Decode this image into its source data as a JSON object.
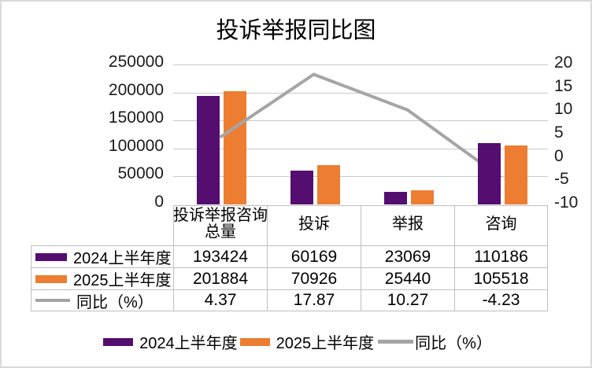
{
  "title": "投诉举报同比图",
  "colors": {
    "bar_2024": "#540E70",
    "bar_2025": "#ED7D31",
    "line": "#A5A5A5",
    "grid": "#C9C9C9",
    "table_border": "#BFBFBF"
  },
  "chart_data": {
    "type": "bar",
    "subtype": "combo-bar-line-with-data-table",
    "title": "投诉举报同比图",
    "categories": [
      "投诉举报咨询\n总量",
      "投诉",
      "举报",
      "咨询"
    ],
    "series": [
      {
        "name": "2024上半年度",
        "type": "bar",
        "axis": "left",
        "color": "#540E70",
        "values": [
          193424,
          60169,
          23069,
          110186
        ]
      },
      {
        "name": "2025上半年度",
        "type": "bar",
        "axis": "left",
        "color": "#ED7D31",
        "values": [
          201884,
          70926,
          25440,
          105518
        ]
      },
      {
        "name": "同比（%）",
        "type": "line",
        "axis": "right",
        "color": "#A5A5A5",
        "values": [
          4.37,
          17.87,
          10.27,
          -4.23
        ]
      }
    ],
    "left_axis": {
      "min": 0,
      "max": 250000,
      "step": 50000,
      "labels": [
        "250000",
        "200000",
        "150000",
        "100000",
        "50000",
        "0"
      ]
    },
    "right_axis": {
      "min": -10,
      "max": 20,
      "step": 5,
      "labels": [
        "20",
        "15",
        "10",
        "5",
        "0",
        "-5",
        "-10"
      ]
    },
    "grid": true,
    "legend_position": "bottom",
    "data_table": {
      "row_labels": [
        "2024上半年度",
        "2025上半年度",
        "同比（%）"
      ],
      "rows": [
        [
          "193424",
          "60169",
          "23069",
          "110186"
        ],
        [
          "201884",
          "70926",
          "25440",
          "105518"
        ],
        [
          "4.37",
          "17.87",
          "10.27",
          "-4.23"
        ]
      ]
    }
  },
  "legend": {
    "items": [
      "2024上半年度",
      "2025上半年度",
      "同比（%）"
    ]
  }
}
